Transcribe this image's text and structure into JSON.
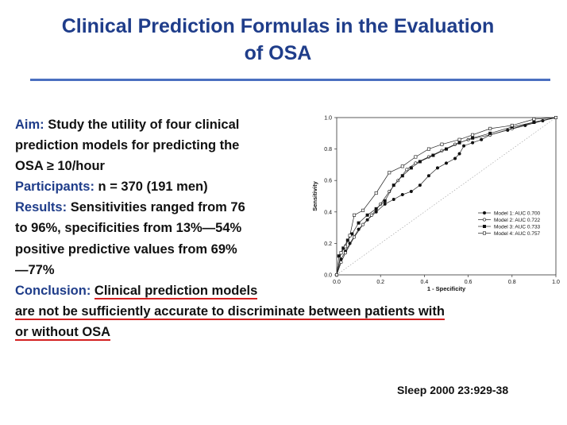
{
  "slide": {
    "title_line1": "Clinical Prediction Formulas in the Evaluation",
    "title_line2": "of OSA",
    "aim_label": "Aim:",
    "aim_line1": " Study the utility of four clinical",
    "aim_line2": " prediction models for predicting the",
    "aim_line3": "OSA ≥ 10/hour",
    "participants_label": "Participants:",
    "participants_text": " n = 370 (191 men)",
    "results_label": "Results:",
    "results_line1": " Sensitivities ranged from 76",
    "results_line2": " to 96%, specificities from 13%—54%",
    "results_line3": " positive predictive values from 69%",
    "results_line4": "—77%",
    "conclusion_label": "Conclusion:",
    "conclusion_line1": "Clinical prediction models",
    "conclusion_line2": "are not be sufficiently accurate to discriminate between patients with",
    "conclusion_line3": " or without OSA ",
    "citation": "Sleep 2000  23:929-38",
    "colors": {
      "title": "#1f3d8a",
      "rule": "#4a6fc0",
      "underline": "#d32020"
    }
  },
  "chart_data": {
    "type": "line",
    "xlabel": "1 - Specificity",
    "ylabel": "Sensitivity",
    "xlim": [
      0,
      1
    ],
    "ylim": [
      0,
      1
    ],
    "x_ticks": [
      "0.0",
      "0.2",
      "0.4",
      "0.6",
      "0.8",
      "1.0"
    ],
    "y_ticks": [
      "0.0",
      "0.2",
      "0.4",
      "0.6",
      "0.8",
      "1.0"
    ],
    "grid": false,
    "legend_position": "right",
    "reference_line": "diagonal dotted",
    "series": [
      {
        "name": "Model 1: AUC 0.700",
        "marker": "filled-circle",
        "x": [
          0,
          0.02,
          0.04,
          0.06,
          0.1,
          0.14,
          0.18,
          0.22,
          0.26,
          0.3,
          0.34,
          0.38,
          0.42,
          0.46,
          0.5,
          0.54,
          0.56,
          0.58,
          0.62,
          0.66,
          0.7,
          0.78,
          0.86,
          0.94,
          1
        ],
        "y": [
          0,
          0.1,
          0.15,
          0.2,
          0.29,
          0.35,
          0.4,
          0.45,
          0.48,
          0.51,
          0.53,
          0.57,
          0.63,
          0.68,
          0.71,
          0.74,
          0.77,
          0.82,
          0.84,
          0.86,
          0.89,
          0.92,
          0.95,
          0.98,
          1
        ]
      },
      {
        "name": "Model 2: AUC 0.722",
        "marker": "open-circle",
        "x": [
          0,
          0.02,
          0.04,
          0.08,
          0.12,
          0.16,
          0.2,
          0.24,
          0.28,
          0.32,
          0.36,
          0.42,
          0.48,
          0.54,
          0.6,
          0.7,
          0.8,
          0.9,
          1
        ],
        "y": [
          0,
          0.08,
          0.14,
          0.24,
          0.32,
          0.38,
          0.45,
          0.53,
          0.6,
          0.67,
          0.71,
          0.75,
          0.79,
          0.83,
          0.86,
          0.89,
          0.93,
          0.97,
          1
        ]
      },
      {
        "name": "Model 3: AUC 0.733",
        "marker": "filled-square",
        "x": [
          0,
          0.01,
          0.03,
          0.05,
          0.07,
          0.1,
          0.14,
          0.18,
          0.22,
          0.26,
          0.3,
          0.34,
          0.38,
          0.44,
          0.5,
          0.56,
          0.62,
          0.7,
          0.8,
          0.9,
          1
        ],
        "y": [
          0,
          0.12,
          0.17,
          0.22,
          0.26,
          0.33,
          0.38,
          0.42,
          0.47,
          0.57,
          0.63,
          0.68,
          0.72,
          0.76,
          0.8,
          0.84,
          0.87,
          0.9,
          0.94,
          0.97,
          1
        ]
      },
      {
        "name": "Model 4: AUC 0.757",
        "marker": "open-square",
        "x": [
          0,
          0.02,
          0.04,
          0.06,
          0.08,
          0.12,
          0.18,
          0.24,
          0.3,
          0.36,
          0.42,
          0.48,
          0.56,
          0.62,
          0.7,
          0.8,
          0.9,
          1
        ],
        "y": [
          0,
          0.14,
          0.18,
          0.25,
          0.38,
          0.41,
          0.52,
          0.65,
          0.69,
          0.75,
          0.8,
          0.83,
          0.86,
          0.89,
          0.93,
          0.95,
          0.99,
          1
        ]
      }
    ]
  }
}
